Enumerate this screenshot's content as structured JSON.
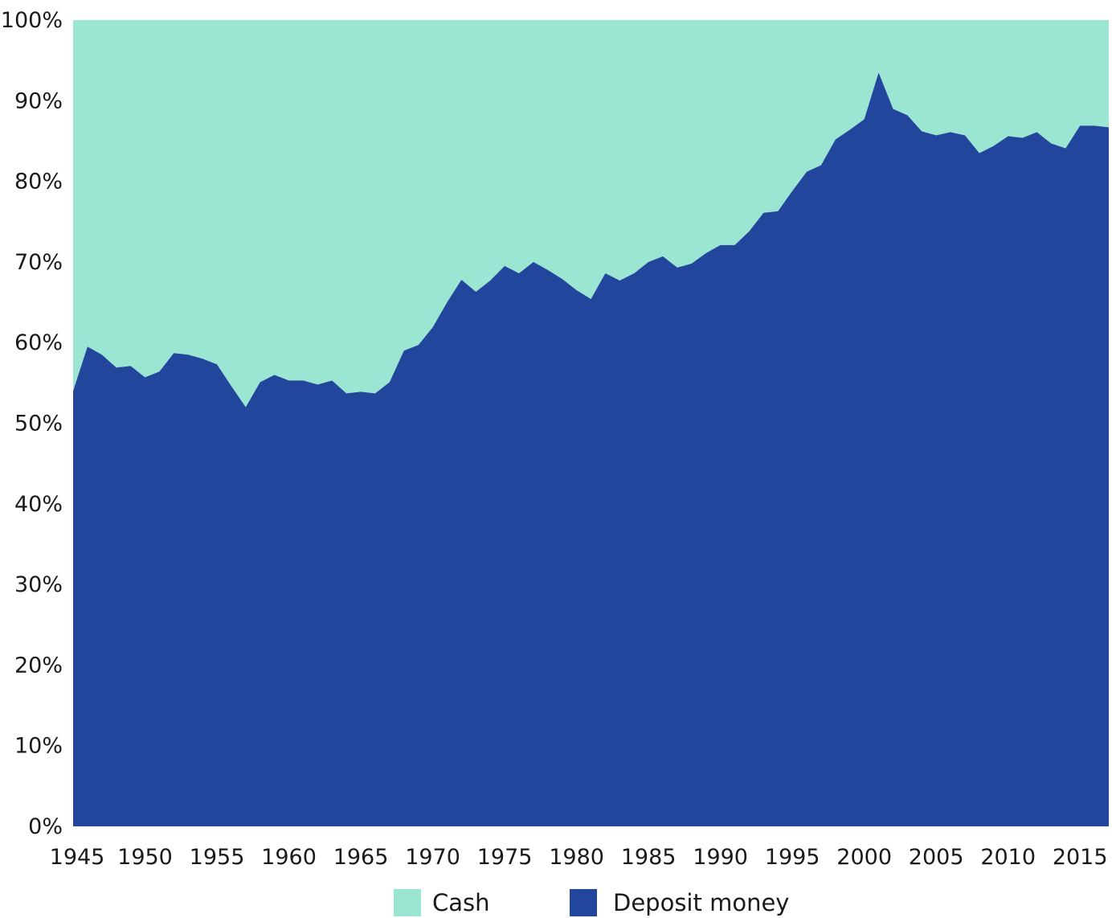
{
  "chart_data": {
    "type": "area",
    "stacked": true,
    "percent": true,
    "x": [
      1945,
      1946,
      1947,
      1948,
      1949,
      1950,
      1951,
      1952,
      1953,
      1954,
      1955,
      1956,
      1957,
      1958,
      1959,
      1960,
      1961,
      1962,
      1963,
      1964,
      1965,
      1966,
      1967,
      1968,
      1969,
      1970,
      1971,
      1972,
      1973,
      1974,
      1975,
      1976,
      1977,
      1978,
      1979,
      1980,
      1981,
      1982,
      1983,
      1984,
      1985,
      1986,
      1987,
      1988,
      1989,
      1990,
      1991,
      1992,
      1993,
      1994,
      1995,
      1996,
      1997,
      1998,
      1999,
      2000,
      2001,
      2002,
      2003,
      2004,
      2005,
      2006,
      2007,
      2008,
      2009,
      2010,
      2011,
      2012,
      2013,
      2014,
      2015,
      2016,
      2017
    ],
    "series": [
      {
        "name": "Deposit money",
        "color": "#21469b",
        "values": [
          54.0,
          59.5,
          58.5,
          56.9,
          57.1,
          55.7,
          56.4,
          58.7,
          58.5,
          58.0,
          57.3,
          54.6,
          52.0,
          55.1,
          56.0,
          55.3,
          55.3,
          54.8,
          55.3,
          53.7,
          53.9,
          53.7,
          55.1,
          59.0,
          59.7,
          61.9,
          65.0,
          67.8,
          66.3,
          67.7,
          69.5,
          68.6,
          70.0,
          69.0,
          67.9,
          66.5,
          65.4,
          68.6,
          67.7,
          68.6,
          70.0,
          70.7,
          69.3,
          69.8,
          71.1,
          72.1,
          72.1,
          73.8,
          76.1,
          76.3,
          78.8,
          81.2,
          82.0,
          85.2,
          86.4,
          87.7,
          93.5,
          89.0,
          88.2,
          86.2,
          85.7,
          86.1,
          85.7,
          83.5,
          84.4,
          85.6,
          85.4,
          86.1,
          84.7,
          84.1,
          86.9,
          86.9,
          86.7
        ]
      },
      {
        "name": "Cash",
        "color": "#9be6d3",
        "values": [
          46.0,
          40.5,
          41.5,
          43.1,
          42.9,
          44.3,
          43.6,
          41.3,
          41.5,
          42.0,
          42.7,
          45.4,
          48.0,
          44.9,
          44.0,
          44.7,
          44.7,
          45.2,
          44.7,
          46.3,
          46.1,
          46.3,
          44.9,
          41.0,
          40.3,
          38.1,
          35.0,
          32.2,
          33.7,
          32.3,
          30.5,
          31.4,
          30.0,
          31.0,
          32.1,
          33.5,
          34.6,
          31.4,
          32.3,
          31.4,
          30.0,
          29.3,
          30.7,
          30.2,
          28.9,
          27.9,
          27.9,
          26.2,
          23.9,
          23.7,
          21.2,
          18.8,
          18.0,
          14.8,
          13.6,
          12.3,
          6.5,
          11.0,
          11.8,
          13.8,
          14.3,
          13.9,
          14.3,
          16.5,
          15.6,
          14.4,
          14.6,
          13.9,
          15.3,
          15.9,
          13.1,
          13.1,
          13.3
        ]
      }
    ],
    "x_ticks": [
      "1945",
      "1950",
      "1955",
      "1960",
      "1965",
      "1970",
      "1975",
      "1980",
      "1985",
      "1990",
      "1995",
      "2000",
      "2005",
      "2010",
      "2015"
    ],
    "y_ticks": [
      "0%",
      "10%",
      "20%",
      "30%",
      "40%",
      "50%",
      "60%",
      "70%",
      "80%",
      "90%",
      "100%"
    ],
    "xlim": [
      1945,
      2017
    ],
    "ylim": [
      0,
      100
    ],
    "grid": false,
    "legend": {
      "position": "bottom-center",
      "items": [
        {
          "label": "Cash",
          "color": "#9be6d3"
        },
        {
          "label": "Deposit money",
          "color": "#21469b"
        }
      ]
    },
    "title": "",
    "xlabel": "",
    "ylabel": ""
  }
}
